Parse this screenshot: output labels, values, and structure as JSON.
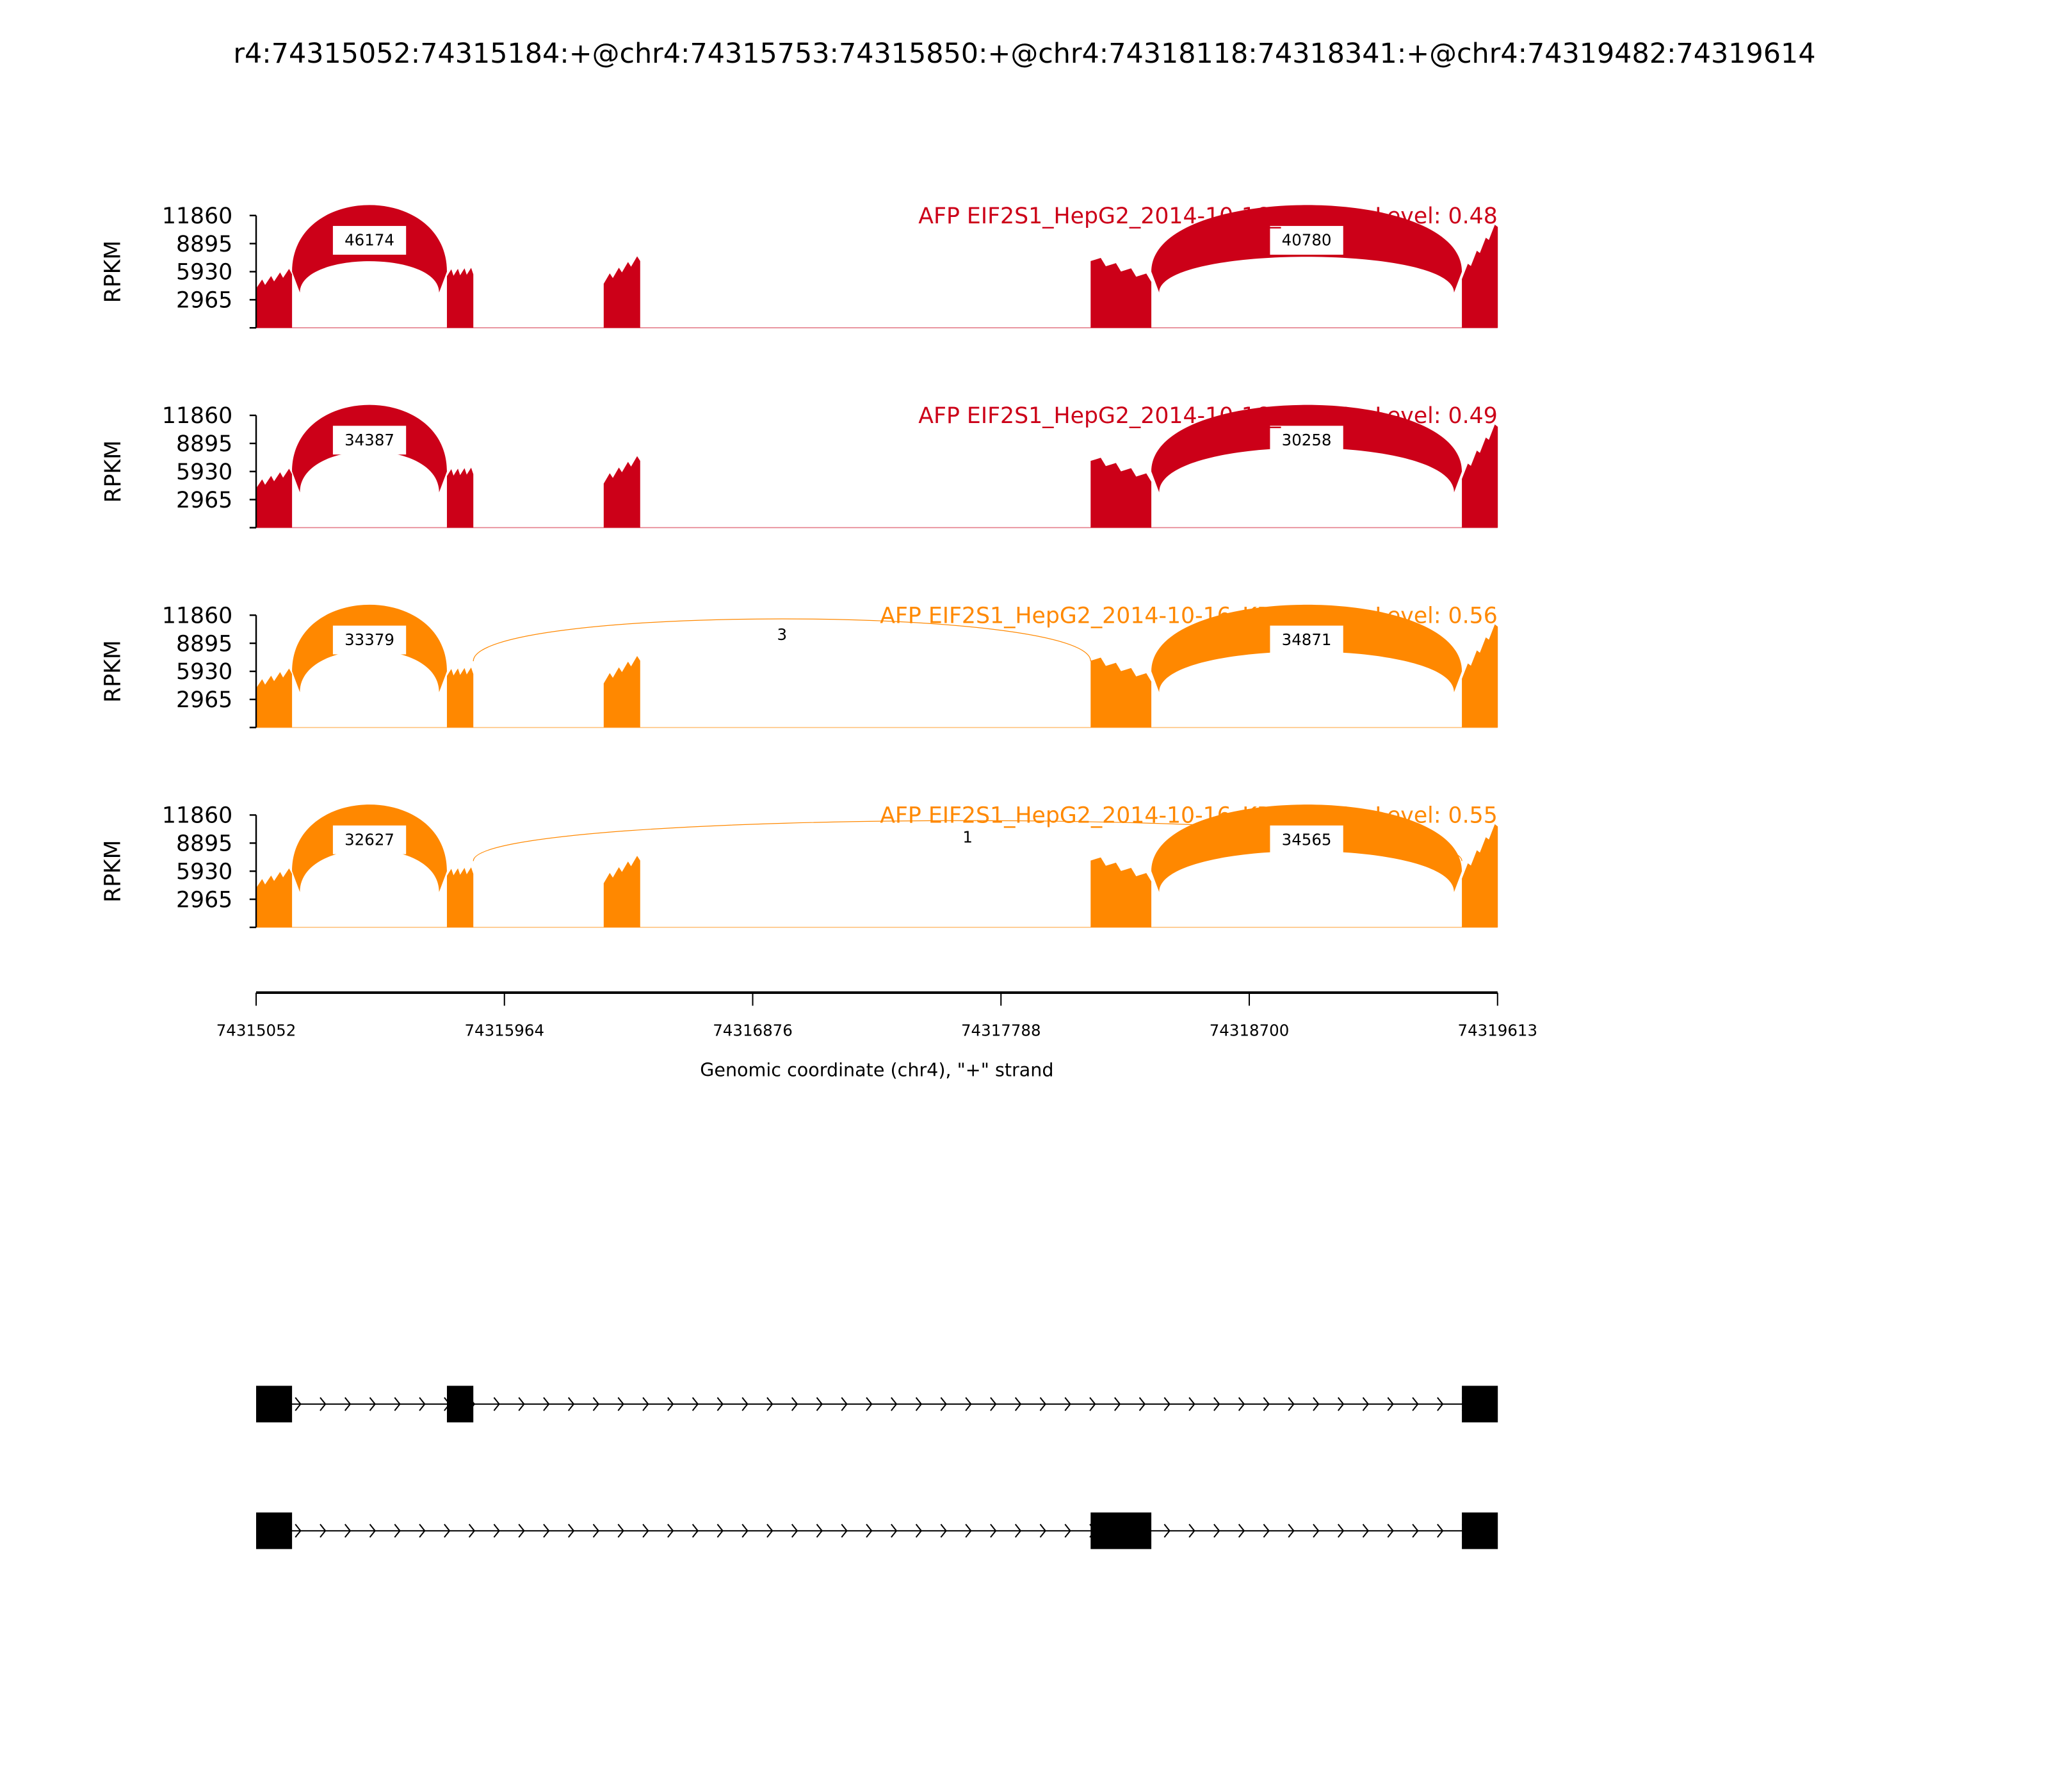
{
  "title": "r4:74315052:74315184:+@chr4:74315753:74315850:+@chr4:74318118:74318341:+@chr4:74319482:74319614",
  "chart_data": {
    "type": "area",
    "xlabel": "Genomic coordinate (chr4), \"+\" strand",
    "ylabel": "RPKM",
    "xlim": [
      74315052,
      74319613
    ],
    "ylim": [
      0,
      11860
    ],
    "xticks": [
      "74315052",
      "74315964",
      "74316876",
      "74317788",
      "74318700",
      "74319613"
    ],
    "yticks": [
      "11860",
      "8895",
      "5930",
      "2965"
    ],
    "panels": [
      {
        "label": "AFP EIF2S1_HepG2_2014-10-16_NC-1 IncLevel: 0.48",
        "color": "#cc0018",
        "junctions": [
          {
            "start": 74315184,
            "end": 74315753,
            "count": "46174"
          },
          {
            "start": 74318341,
            "end": 74319482,
            "count": "40780"
          }
        ]
      },
      {
        "label": "AFP EIF2S1_HepG2_2014-10-16_NC-2 IncLevel: 0.49",
        "color": "#cc0018",
        "junctions": [
          {
            "start": 74315184,
            "end": 74315753,
            "count": "34387"
          },
          {
            "start": 74318341,
            "end": 74319482,
            "count": "30258"
          }
        ]
      },
      {
        "label": "AFP EIF2S1_HepG2_2014-10-16_KD/KO-1 IncLevel: 0.56",
        "color": "#ff8800",
        "junctions": [
          {
            "start": 74315184,
            "end": 74315753,
            "count": "33379"
          },
          {
            "start": 74315850,
            "end": 74318118,
            "count": "3"
          },
          {
            "start": 74318341,
            "end": 74319482,
            "count": "34871"
          }
        ]
      },
      {
        "label": "AFP EIF2S1_HepG2_2014-10-16_KD/KO-2 IncLevel: 0.55",
        "color": "#ff8800",
        "junctions": [
          {
            "start": 74315184,
            "end": 74315753,
            "count": "32627"
          },
          {
            "start": 74315850,
            "end": 74319482,
            "count": "1"
          },
          {
            "start": 74318341,
            "end": 74319482,
            "count": "34565"
          }
        ]
      }
    ],
    "coverage_exons": [
      {
        "start": 74315052,
        "end": 74315184,
        "rpkm": [
          4500,
          6000
        ]
      },
      {
        "start": 74315753,
        "end": 74315850,
        "rpkm": [
          5800,
          6000
        ]
      },
      {
        "start": 74316329,
        "end": 74316463,
        "rpkm": [
          5000,
          7400
        ]
      },
      {
        "start": 74318118,
        "end": 74318341,
        "rpkm": [
          7400,
          5200
        ]
      },
      {
        "start": 74319482,
        "end": 74319614,
        "rpkm": [
          5500,
          11000
        ]
      }
    ],
    "isoforms": [
      [
        [
          74315052,
          74315184
        ],
        [
          74315753,
          74315850
        ],
        [
          74319482,
          74319614
        ]
      ],
      [
        [
          74315052,
          74315184
        ],
        [
          74318118,
          74318341
        ],
        [
          74319482,
          74319614
        ]
      ]
    ]
  }
}
